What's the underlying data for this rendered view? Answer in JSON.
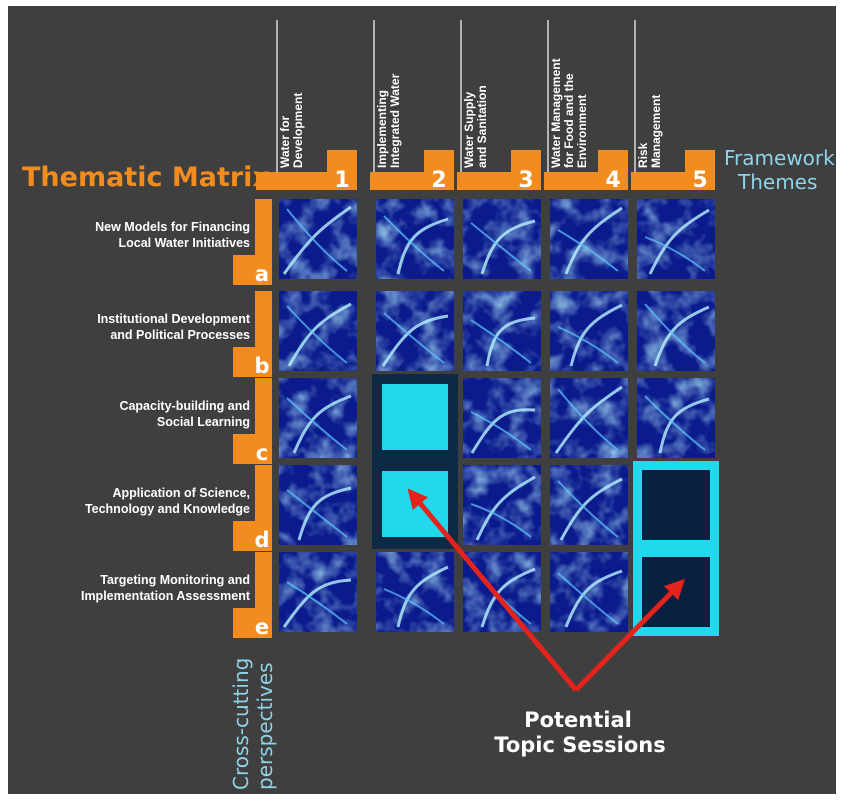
{
  "title": "Thematic Matrix",
  "framework_label": [
    "Framework",
    "Themes"
  ],
  "crosscut_label": [
    "Cross-cutting",
    "perspectives"
  ],
  "themes": [
    {
      "number": "1",
      "lines": [
        "Water for",
        "Development"
      ]
    },
    {
      "number": "2",
      "lines": [
        "Implementing",
        "Integrated Water"
      ]
    },
    {
      "number": "3",
      "lines": [
        "Water Supply",
        "and Sanitation"
      ]
    },
    {
      "number": "4",
      "lines": [
        "Water Management",
        "for Food and the",
        "Environment"
      ]
    },
    {
      "number": "5",
      "lines": [
        "Risk",
        "Management"
      ]
    }
  ],
  "perspectives": [
    {
      "letter": "a",
      "lines": [
        "New Models for Financing",
        "Local Water Initiatives"
      ]
    },
    {
      "letter": "b",
      "lines": [
        "Institutional Development",
        "and Political Processes"
      ]
    },
    {
      "letter": "c",
      "lines": [
        "Capacity-building and",
        "Social Learning"
      ]
    },
    {
      "letter": "d",
      "lines": [
        "Application of Science,",
        "Technology and Knowledge"
      ]
    },
    {
      "letter": "e",
      "lines": [
        "Targeting Monitoring and",
        "Implementation Assessment"
      ]
    }
  ],
  "highlighted_cells": [
    {
      "row": "c",
      "col": "2",
      "style": "cyan-fill"
    },
    {
      "row": "d",
      "col": "2",
      "style": "cyan-fill"
    },
    {
      "row": "d",
      "col": "5",
      "style": "cyan-frame"
    },
    {
      "row": "e",
      "col": "5",
      "style": "cyan-frame"
    }
  ],
  "callout": [
    "Potential",
    "Topic Sessions"
  ],
  "colors": {
    "background": "#3f3f3f",
    "orange": "#f28c1e",
    "cyan": "#22d8ec",
    "cell_dark": "#0a2040",
    "arrow": "#e5231d",
    "text": "#ffffff"
  }
}
